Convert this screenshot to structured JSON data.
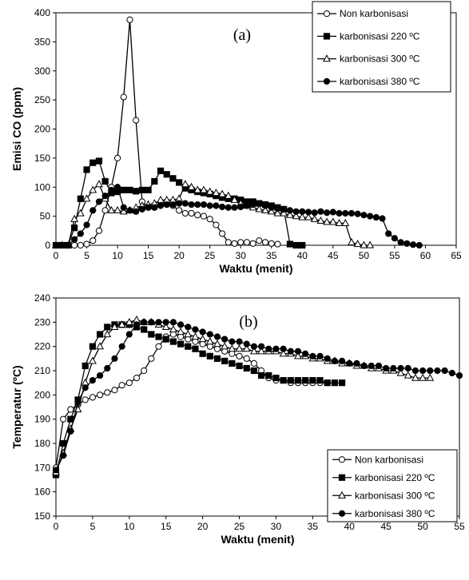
{
  "chart_data": [
    {
      "type": "line",
      "panel_label": "(a)",
      "xlabel": "Waktu (menit)",
      "ylabel": "Emisi CO (ppm)",
      "xlim": [
        0,
        65
      ],
      "ylim": [
        0,
        400
      ],
      "xticks": [
        "0",
        "5",
        "10",
        "15",
        "20",
        "25",
        "30",
        "35",
        "40",
        "45",
        "50",
        "55",
        "60",
        "65"
      ],
      "yticks": [
        "0",
        "50",
        "100",
        "150",
        "200",
        "250",
        "300",
        "350",
        "400"
      ],
      "legend_position": "top-right",
      "grid": false,
      "series": [
        {
          "name": "Non karbonisasi",
          "marker": "circle-open",
          "x": [
            0,
            1,
            2,
            3,
            4,
            5,
            6,
            7,
            8,
            9,
            10,
            11,
            12,
            13,
            14,
            15,
            16,
            17,
            18,
            19,
            20,
            21,
            22,
            23,
            24,
            25,
            26,
            27,
            28,
            29,
            30,
            31,
            32,
            33,
            34,
            35,
            36
          ],
          "y": [
            0,
            0,
            0,
            0,
            0,
            2,
            8,
            25,
            60,
            100,
            150,
            255,
            388,
            215,
            75,
            65,
            65,
            70,
            70,
            68,
            60,
            55,
            55,
            52,
            50,
            45,
            35,
            20,
            5,
            3,
            5,
            5,
            3,
            8,
            5,
            3,
            2
          ]
        },
        {
          "name": "karbonisasi 220 ºC",
          "marker": "square-filled",
          "x": [
            0,
            1,
            2,
            3,
            4,
            5,
            6,
            7,
            8,
            9,
            10,
            11,
            12,
            13,
            14,
            15,
            16,
            17,
            18,
            19,
            20,
            21,
            22,
            23,
            24,
            25,
            26,
            27,
            28,
            29,
            30,
            31,
            32,
            33,
            34,
            35,
            36,
            37,
            38,
            39,
            40
          ],
          "y": [
            0,
            0,
            0,
            30,
            80,
            130,
            142,
            145,
            110,
            90,
            92,
            95,
            95,
            93,
            95,
            95,
            110,
            128,
            122,
            115,
            108,
            98,
            95,
            92,
            90,
            88,
            85,
            82,
            80,
            80,
            78,
            75,
            75,
            72,
            70,
            68,
            65,
            62,
            2,
            0,
            0
          ]
        },
        {
          "name": "karbonisasi 300 ºC",
          "marker": "triangle-open",
          "x": [
            0,
            1,
            2,
            3,
            4,
            5,
            6,
            7,
            8,
            9,
            10,
            11,
            12,
            13,
            14,
            15,
            16,
            17,
            18,
            19,
            20,
            21,
            22,
            23,
            24,
            25,
            26,
            27,
            28,
            29,
            30,
            31,
            32,
            33,
            34,
            35,
            36,
            37,
            38,
            39,
            40,
            41,
            42,
            43,
            44,
            45,
            46,
            47,
            48,
            49,
            50,
            51
          ],
          "y": [
            0,
            0,
            0,
            45,
            55,
            80,
            95,
            105,
            80,
            60,
            60,
            58,
            60,
            65,
            68,
            70,
            72,
            78,
            78,
            78,
            80,
            105,
            100,
            95,
            95,
            92,
            90,
            88,
            85,
            78,
            72,
            68,
            65,
            62,
            60,
            58,
            55,
            55,
            52,
            50,
            48,
            48,
            45,
            42,
            40,
            40,
            38,
            38,
            5,
            2,
            0,
            0
          ]
        },
        {
          "name": "karbonisasi 380 ºC",
          "marker": "circle-filled",
          "x": [
            0,
            1,
            2,
            3,
            4,
            5,
            6,
            7,
            8,
            9,
            10,
            11,
            12,
            13,
            14,
            15,
            16,
            17,
            18,
            19,
            20,
            21,
            22,
            23,
            24,
            25,
            26,
            27,
            28,
            29,
            30,
            31,
            32,
            33,
            34,
            35,
            36,
            37,
            38,
            39,
            40,
            41,
            42,
            43,
            44,
            45,
            46,
            47,
            48,
            49,
            50,
            51,
            52,
            53,
            54,
            55,
            56,
            57,
            58,
            59
          ],
          "y": [
            0,
            0,
            0,
            10,
            20,
            35,
            60,
            75,
            85,
            95,
            100,
            65,
            60,
            58,
            62,
            65,
            65,
            68,
            70,
            70,
            72,
            72,
            70,
            70,
            70,
            68,
            68,
            66,
            65,
            65,
            66,
            68,
            70,
            72,
            68,
            65,
            63,
            62,
            60,
            58,
            58,
            57,
            56,
            58,
            56,
            57,
            55,
            55,
            55,
            54,
            52,
            50,
            48,
            46,
            20,
            12,
            5,
            3,
            1,
            0
          ]
        }
      ]
    },
    {
      "type": "line",
      "panel_label": "(b)",
      "xlabel": "Waktu (menit)",
      "ylabel": "Temperatur (ºC)",
      "xlim": [
        0,
        55
      ],
      "ylim": [
        150,
        240
      ],
      "xticks": [
        "0",
        "5",
        "10",
        "15",
        "20",
        "25",
        "30",
        "35",
        "40",
        "45",
        "50",
        "55"
      ],
      "yticks": [
        "150",
        "160",
        "170",
        "180",
        "190",
        "200",
        "210",
        "220",
        "230",
        "240"
      ],
      "legend_position": "bottom-right",
      "grid": false,
      "series": [
        {
          "name": "Non karbonisasi",
          "marker": "circle-open",
          "x": [
            0,
            1,
            2,
            3,
            4,
            5,
            6,
            7,
            8,
            9,
            10,
            11,
            12,
            13,
            14,
            15,
            16,
            17,
            18,
            19,
            20,
            21,
            22,
            23,
            24,
            25,
            26,
            27,
            28,
            29,
            30,
            31,
            32,
            33,
            34,
            35,
            36,
            37
          ],
          "y": [
            170,
            190,
            194,
            196,
            198,
            199,
            200,
            201,
            202,
            204,
            205,
            207,
            210,
            215,
            220,
            224,
            225,
            224,
            223,
            222,
            221,
            220,
            219,
            218,
            217,
            216,
            215,
            213,
            210,
            207,
            206,
            206,
            205,
            205,
            205,
            205,
            205,
            205
          ]
        },
        {
          "name": "karbonisasi 220 ºC",
          "marker": "square-filled",
          "x": [
            0,
            1,
            2,
            3,
            4,
            5,
            6,
            7,
            8,
            9,
            10,
            11,
            12,
            13,
            14,
            15,
            16,
            17,
            18,
            19,
            20,
            21,
            22,
            23,
            24,
            25,
            26,
            27,
            28,
            29,
            30,
            31,
            32,
            33,
            34,
            35,
            36,
            37,
            38,
            39
          ],
          "y": [
            167,
            180,
            190,
            198,
            212,
            220,
            225,
            228,
            229,
            229,
            229,
            228,
            227,
            225,
            224,
            223,
            222,
            221,
            220,
            219,
            217,
            216,
            215,
            214,
            213,
            212,
            211,
            210,
            208,
            208,
            207,
            206,
            206,
            206,
            206,
            206,
            206,
            205,
            205,
            205
          ]
        },
        {
          "name": "karbonisasi 300 ºC",
          "marker": "triangle-open",
          "x": [
            0,
            1,
            2,
            3,
            4,
            5,
            6,
            7,
            8,
            9,
            10,
            11,
            12,
            13,
            14,
            15,
            16,
            17,
            18,
            19,
            20,
            21,
            22,
            23,
            24,
            25,
            26,
            27,
            28,
            29,
            30,
            31,
            32,
            33,
            34,
            35,
            36,
            37,
            38,
            39,
            40,
            41,
            42,
            43,
            44,
            45,
            46,
            47,
            48,
            49,
            50,
            51
          ],
          "y": [
            168,
            176,
            186,
            194,
            205,
            214,
            220,
            225,
            228,
            229,
            230,
            231,
            230,
            230,
            229,
            228,
            227,
            226,
            225,
            224,
            223,
            222,
            221,
            220,
            219,
            219,
            219,
            218,
            218,
            218,
            218,
            217,
            217,
            216,
            216,
            215,
            215,
            214,
            214,
            213,
            213,
            212,
            212,
            211,
            211,
            210,
            210,
            209,
            208,
            207,
            207,
            207
          ]
        },
        {
          "name": "karbonisasi 380 ºC",
          "marker": "circle-filled",
          "x": [
            0,
            1,
            2,
            3,
            4,
            5,
            6,
            7,
            8,
            9,
            10,
            11,
            12,
            13,
            14,
            15,
            16,
            17,
            18,
            19,
            20,
            21,
            22,
            23,
            24,
            25,
            26,
            27,
            28,
            29,
            30,
            31,
            32,
            33,
            34,
            35,
            36,
            37,
            38,
            39,
            40,
            41,
            42,
            43,
            44,
            45,
            46,
            47,
            48,
            49,
            50,
            51,
            52,
            53,
            54,
            55
          ],
          "y": [
            169,
            175,
            185,
            197,
            203,
            206,
            208,
            211,
            215,
            220,
            225,
            229,
            230,
            230,
            230,
            230,
            230,
            229,
            228,
            227,
            226,
            225,
            224,
            223,
            222,
            222,
            221,
            220,
            220,
            219,
            219,
            219,
            218,
            218,
            217,
            216,
            216,
            215,
            214,
            214,
            213,
            213,
            212,
            212,
            212,
            211,
            211,
            211,
            211,
            210,
            210,
            210,
            210,
            210,
            209,
            208
          ]
        }
      ]
    }
  ]
}
